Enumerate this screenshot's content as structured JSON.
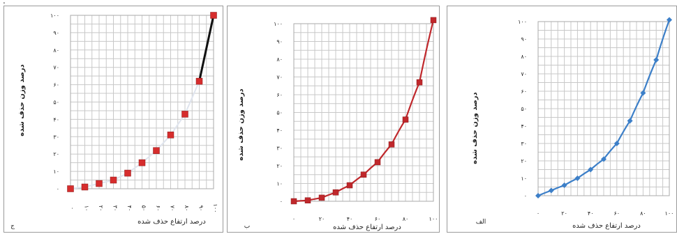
{
  "chart_data": [
    {
      "id": "panel-c",
      "panel_label": "ج",
      "type": "line",
      "xlabel": "درصد ارتفاع حذف شده",
      "ylabel": "درصد وزن حذف شده",
      "x_ticks": [
        "۰",
        "۱۰",
        "۲۰",
        "۳۰",
        "۴۰",
        "۵۰",
        "۶۰",
        "۷۰",
        "۸۰",
        "۹۰",
        "۱۰۰"
      ],
      "y_ticks": [
        "۰",
        "۱۰",
        "۲۰",
        "۳۰",
        "۴۰",
        "۵۰",
        "۶۰",
        "۷۰",
        "۸۰",
        "۹۰",
        "۱۰۰"
      ],
      "xlim": [
        0,
        100
      ],
      "ylim": [
        0,
        100
      ],
      "grid": true,
      "x": [
        0,
        10,
        20,
        30,
        40,
        50,
        60,
        70,
        80,
        90,
        100
      ],
      "y": [
        0,
        1,
        3,
        5,
        9,
        15,
        22,
        31,
        43,
        62,
        100
      ],
      "colors": {
        "marker": "#d62d2d",
        "line_light": "#dfe4ee",
        "line_dark": "#111111"
      },
      "marker": "square"
    },
    {
      "id": "panel-b",
      "panel_label": "ب",
      "type": "line",
      "xlabel": "درصد ارتفاع حذف شده",
      "ylabel": "درصد وزن حذف شده",
      "x_ticks": [
        "۰",
        "۲۰",
        "۴۰",
        "۶۰",
        "۸۰",
        "۱۰۰"
      ],
      "y_ticks": [
        "۰",
        "۱۰",
        "۲۰",
        "۳۰",
        "۴۰",
        "۵۰",
        "۶۰",
        "۷۰",
        "۸۰",
        "۹۰",
        "۱۰۰"
      ],
      "xlim": [
        0,
        100
      ],
      "ylim": [
        0,
        100
      ],
      "grid": true,
      "x": [
        0,
        10,
        20,
        30,
        40,
        50,
        60,
        70,
        80,
        90,
        100
      ],
      "y": [
        0,
        0.5,
        2,
        5,
        9,
        15,
        22,
        32,
        46,
        67,
        102
      ],
      "colors": {
        "line": "#c0282c",
        "marker": "#c0282c"
      },
      "marker": "square"
    },
    {
      "id": "panel-a",
      "panel_label": "الف",
      "type": "line",
      "xlabel": "درصد ارتفاع حذف شده",
      "ylabel": "درصد وزن حذف شده",
      "x_ticks": [
        "۰",
        "۲۰",
        "۴۰",
        "۶۰",
        "۸۰",
        "۱۰۰"
      ],
      "y_ticks": [
        "۰",
        "۱۰",
        "۲۰",
        "۳۰",
        "۴۰",
        "۵۰",
        "۶۰",
        "۷۰",
        "۸۰",
        "۹۰",
        "۱۰۰"
      ],
      "xlim": [
        0,
        100
      ],
      "ylim": [
        0,
        100
      ],
      "grid": true,
      "x": [
        0,
        10,
        20,
        30,
        40,
        50,
        60,
        70,
        80,
        90,
        100
      ],
      "y": [
        0,
        3,
        6,
        10,
        15,
        21,
        30,
        43,
        59,
        78,
        101
      ],
      "colors": {
        "line": "#3c7fc8",
        "marker": "#3c7fc8"
      },
      "marker": "diamond"
    }
  ],
  "page": {
    "corner_mark": "."
  }
}
